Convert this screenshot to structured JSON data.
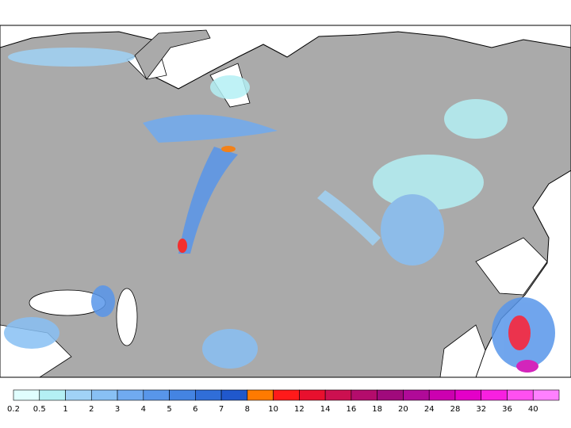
{
  "legend": {
    "ticks": [
      0.2,
      0.5,
      1,
      2,
      3,
      4,
      5,
      6,
      7,
      8,
      10,
      12,
      14,
      16,
      18,
      20,
      24,
      28,
      32,
      36,
      40
    ],
    "colors": [
      "#e0fefe",
      "#b4f0f4",
      "#a0d2f6",
      "#88c0f4",
      "#70aaf0",
      "#5896ea",
      "#4484e2",
      "#306ed8",
      "#2058cc",
      "#ff7a00",
      "#ff1a1a",
      "#e8102e",
      "#cc1050",
      "#b40c6c",
      "#a00a7c",
      "#b00a98",
      "#cc00b0",
      "#e400c8",
      "#f820e0",
      "#ff50f0",
      "#ff80ff"
    ]
  }
}
